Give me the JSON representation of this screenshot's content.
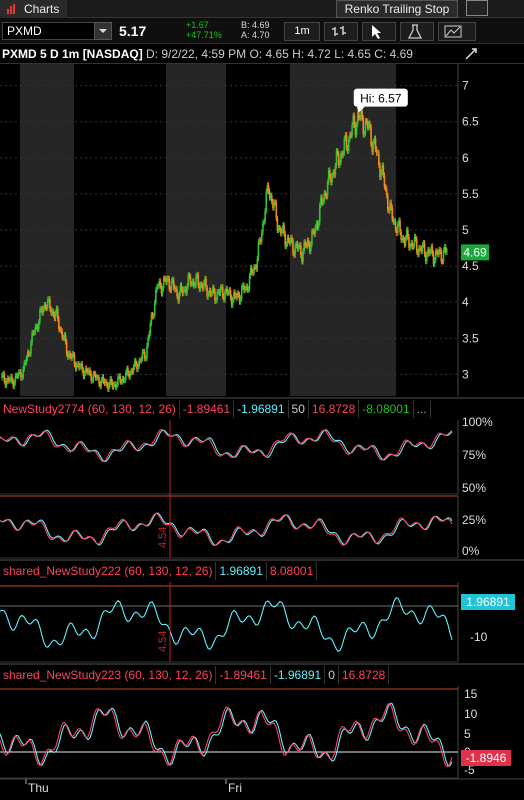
{
  "toolbar": {
    "tab_label": "Charts",
    "tab_icon": "bar-chart-icon",
    "study_dropdown": "Renko Trailing Stop"
  },
  "quote": {
    "symbol": "PXMD",
    "last": "5.17",
    "change": "+1.67",
    "change_pct": "+47.71%",
    "bid": "B: 4.69",
    "ask": "A: 4.70",
    "timeframe_btn": "1m"
  },
  "header": {
    "title": "PXMD 5 D 1m [NASDAQ]",
    "date": "D: 9/2/22, 4:59 PM",
    "open": "O: 4.65",
    "high": "H: 4.72",
    "low": "L: 4.65",
    "close": "C: 4.69"
  },
  "colors": {
    "up": "#34c234",
    "down": "#f08a1c",
    "study_main": "#5ef0ff",
    "study_signal": "#ff4060",
    "session": "#2b2b2b",
    "hline": "#c8432a",
    "vline": "#c82020"
  },
  "chart_data": [
    {
      "type": "line",
      "title": "PXMD 5 D 1m [NASDAQ]",
      "note_days": [
        "Thu",
        "Fri"
      ],
      "ylim": [
        2.7,
        7.3
      ],
      "yticks": [
        3,
        3.5,
        4,
        4.5,
        5,
        5.5,
        6,
        6.5,
        7
      ],
      "series": [
        {
          "name": "price",
          "values": [
            2.95,
            2.9,
            3.05,
            3.6,
            4.0,
            3.8,
            3.3,
            3.1,
            3.0,
            2.9,
            2.85,
            2.95,
            3.1,
            3.3,
            4.2,
            4.3,
            4.1,
            4.3,
            4.25,
            4.1,
            4.15,
            4.05,
            4.2,
            4.6,
            5.6,
            5.0,
            4.8,
            4.7,
            4.9,
            5.5,
            5.9,
            6.2,
            6.57,
            6.4,
            5.9,
            5.2,
            4.9,
            4.8,
            4.7,
            4.65,
            4.69
          ]
        }
      ],
      "annotation": "Hi: 6.57",
      "last_value": "4.69"
    },
    {
      "type": "line",
      "title": "NewStudy2774 (60, 130, 12, 26)",
      "values_shown": [
        "-1.89461",
        "-1.96891",
        "50",
        "16.8728",
        "-8.08001",
        "..."
      ],
      "yticks": [
        "100%",
        "75%",
        "50%",
        "25%",
        "0%"
      ],
      "marker": "4.54"
    },
    {
      "type": "line",
      "title": "shared_NewStudy222 (60, 130, 12, 26)",
      "values_shown": [
        "1.96891",
        "8.08001"
      ],
      "yticks": [
        "0",
        "-10"
      ],
      "last_value": "1.96891",
      "marker": "4.54"
    },
    {
      "type": "line",
      "title": "shared_NewStudy223 (60, 130, 12, 26)",
      "values_shown": [
        "-1.89461",
        "-1.96891",
        "0",
        "16.8728"
      ],
      "yticks": [
        "15",
        "10",
        "5",
        "0",
        "-5"
      ],
      "last_value": "-1.8946"
    }
  ],
  "xaxis": {
    "labels": [
      "Thu",
      "Fri"
    ]
  },
  "studies": [
    {
      "name": "NewStudy2774 (60, 130, 12, 26)",
      "vals": [
        "-1.89461",
        "-1.96891",
        "50",
        "16.8728",
        "-8.08001",
        "..."
      ],
      "colors": [
        "#ff4060",
        "#ff4060",
        "#5ef0ff",
        "#ccc",
        "#ff4060",
        "#19c419",
        "#aaa"
      ]
    },
    {
      "name": "shared_NewStudy222 (60, 130, 12, 26)",
      "vals": [
        "1.96891",
        "8.08001"
      ],
      "colors": [
        "#ff4060",
        "#5ef0ff",
        "#ff4060"
      ]
    },
    {
      "name": "shared_NewStudy223 (60, 130, 12, 26)",
      "vals": [
        "-1.89461",
        "-1.96891",
        "0",
        "16.8728"
      ],
      "colors": [
        "#ff4060",
        "#ff4060",
        "#5ef0ff",
        "#ccc",
        "#ff4060"
      ]
    }
  ],
  "pane1_ticks": [
    "100%",
    "75%",
    "50%",
    "25%",
    "0%"
  ],
  "pane2_ticks": [
    "0",
    "-10"
  ],
  "pane3_ticks": [
    "15",
    "10",
    "5",
    "0",
    "-5"
  ],
  "price_ticks": [
    "7",
    "6.5",
    "6",
    "5.5",
    "5",
    "4.5",
    "4",
    "3.5",
    "3"
  ],
  "hi_label": "Hi: 6.57",
  "last_price_badge": "4.69",
  "study2_badge": "1.96891",
  "study3_badge": "-1.8946",
  "marker_label": "4.54"
}
